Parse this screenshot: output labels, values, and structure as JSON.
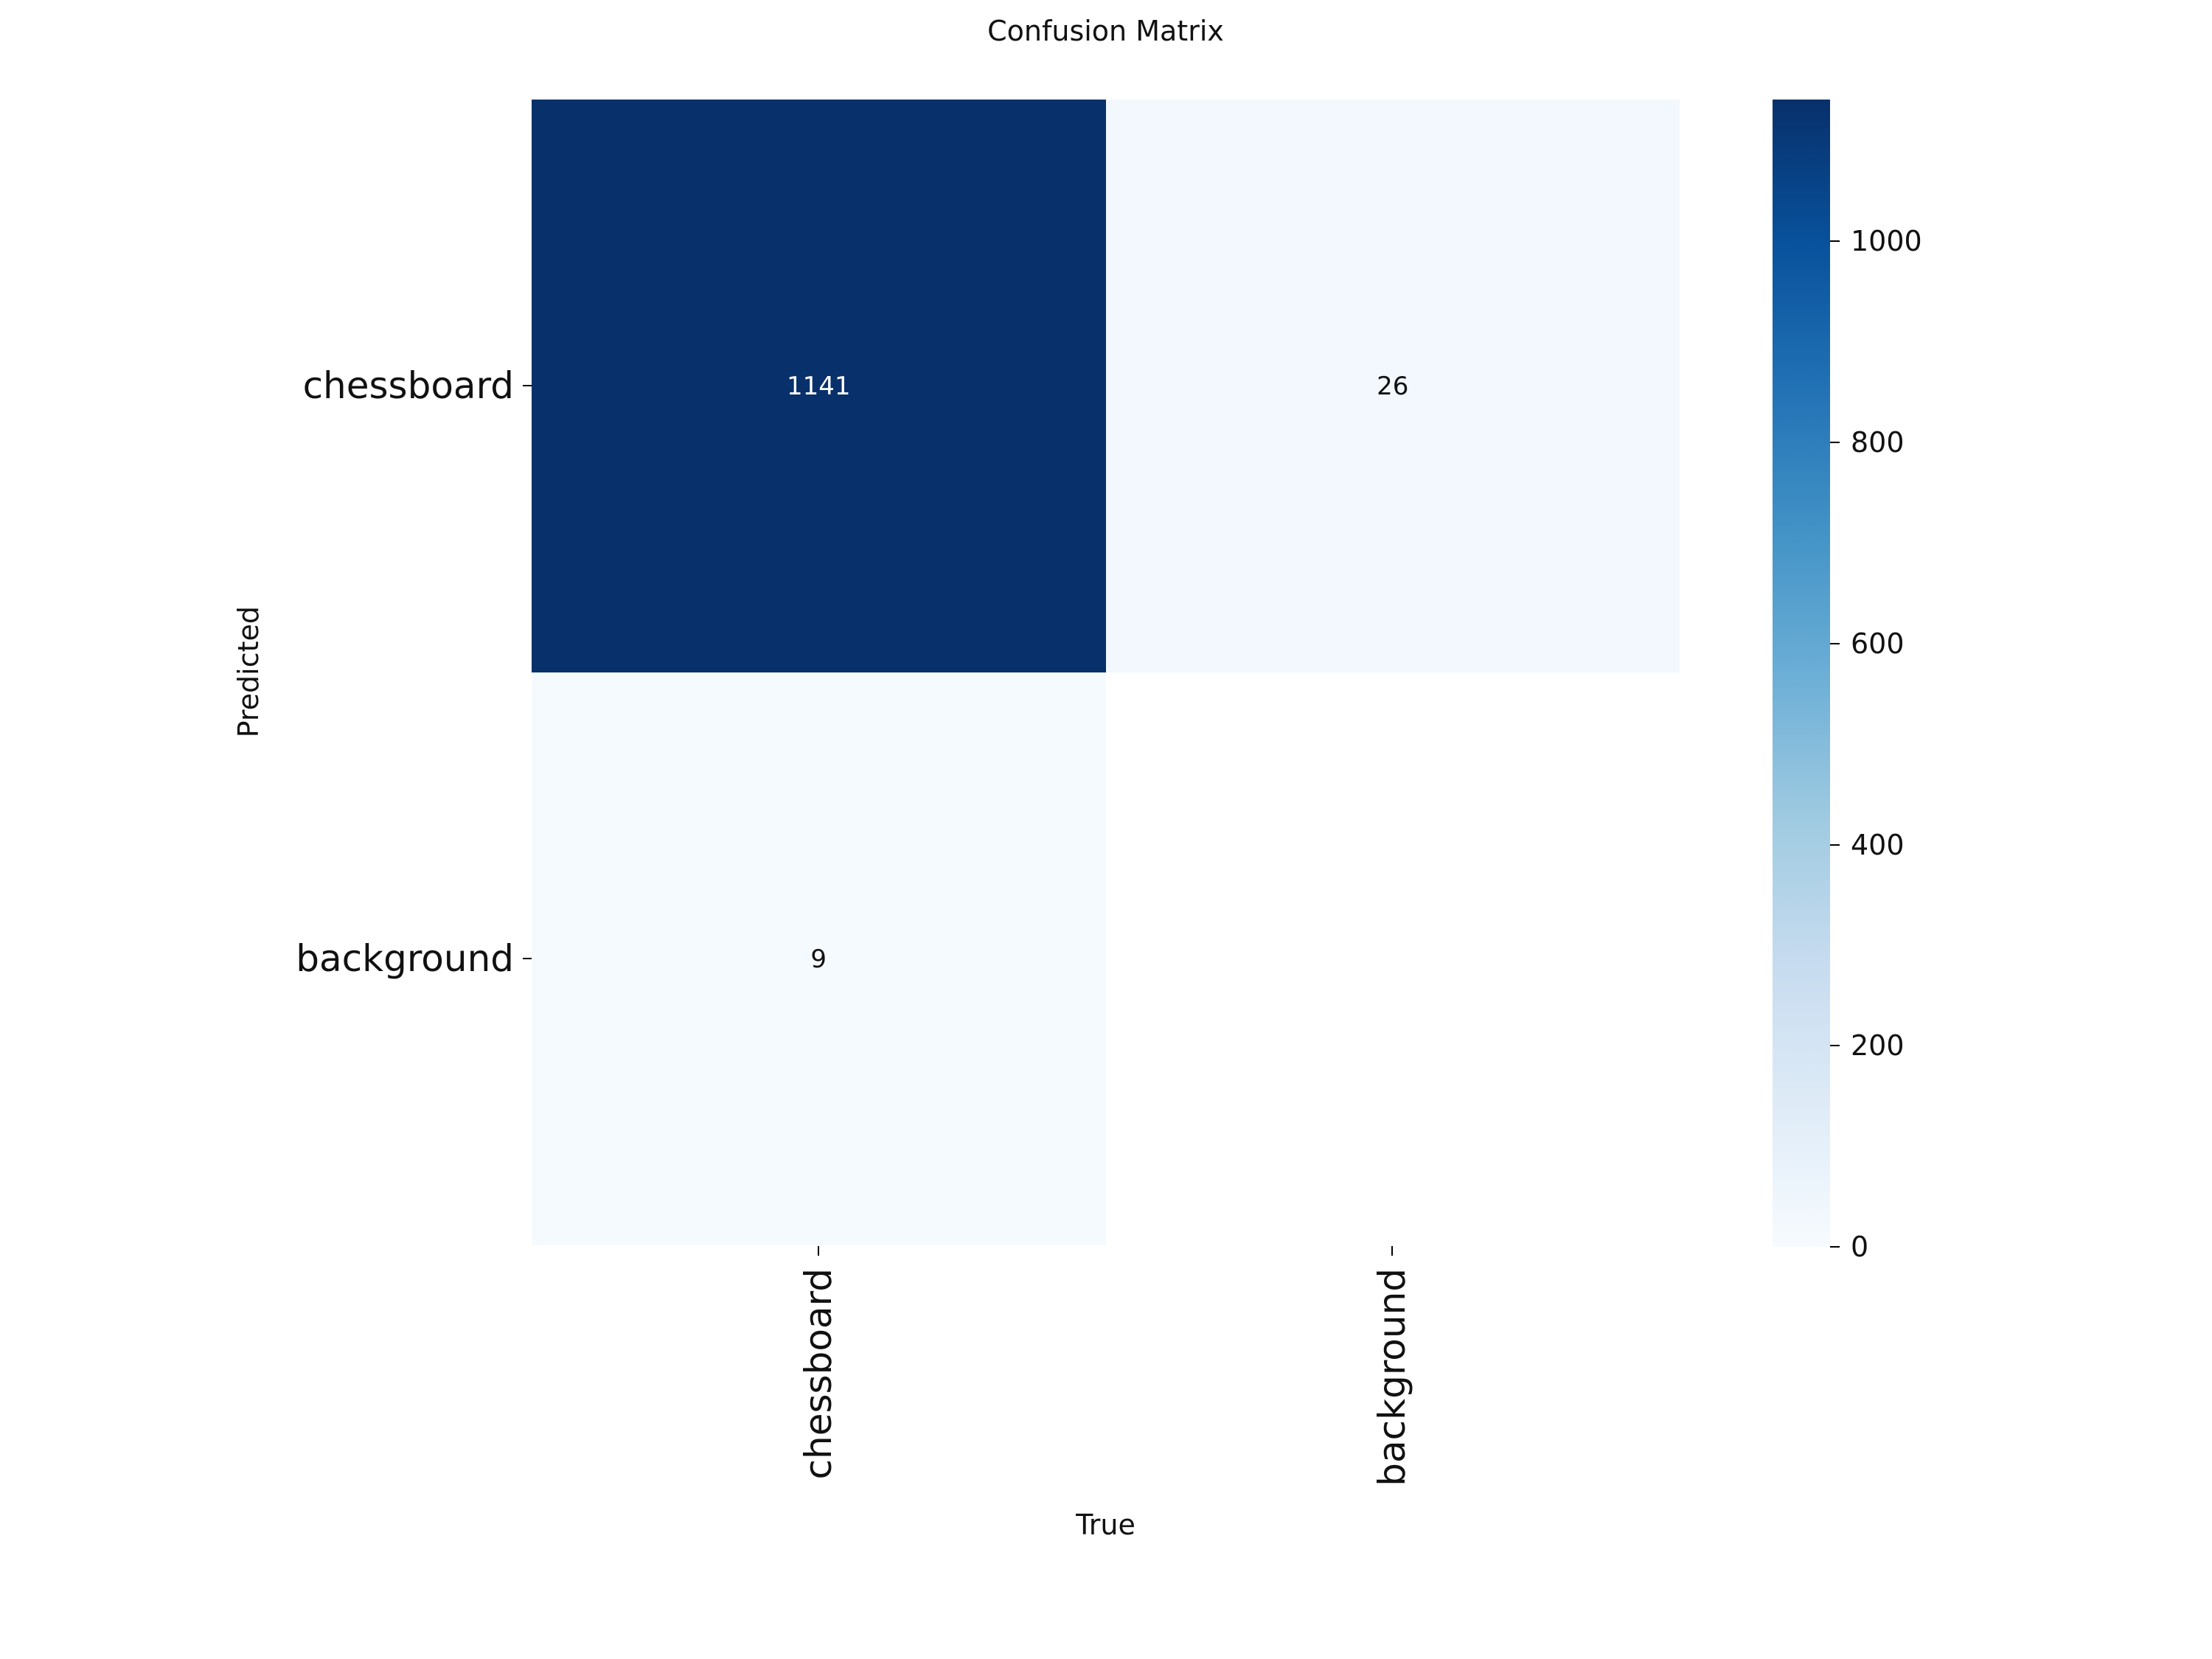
{
  "title": "Confusion Matrix",
  "chart_data": {
    "type": "heatmap",
    "title": "Confusion Matrix",
    "xlabel": "True",
    "ylabel": "Predicted",
    "x_categories": [
      "chessboard",
      "background"
    ],
    "y_categories": [
      "chessboard",
      "background"
    ],
    "matrix": [
      [
        1141,
        26
      ],
      [
        9,
        null
      ]
    ],
    "annotations": [
      [
        "1141",
        "26"
      ],
      [
        "9",
        ""
      ]
    ],
    "vmin": 0,
    "vmax": 1141,
    "colormap": "Blues",
    "colormap_anchors": [
      "#f7fbff",
      "#deebf7",
      "#c6dbef",
      "#9ecae1",
      "#6baed6",
      "#4292c6",
      "#2171b5",
      "#08519c",
      "#08306b"
    ],
    "empty_cell_color": "#ffffff",
    "annotation_color_dark_cell": "#ffffff",
    "annotation_color_light_cell": "#111111",
    "colorbar_ticks": [
      0,
      200,
      400,
      600,
      800,
      1000
    ],
    "legend_position": "right",
    "grid": false
  }
}
